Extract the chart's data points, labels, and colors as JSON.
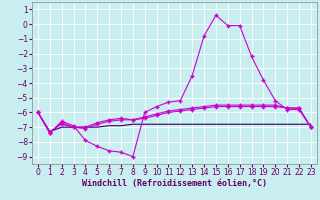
{
  "xlabel": "Windchill (Refroidissement éolien,°C)",
  "background_color": "#c8eef0",
  "grid_color": "#b0dde0",
  "line_color1": "#cc00cc",
  "line_color2": "#cc00cc",
  "line_color3": "#cc00cc",
  "line_color_flat": "#330066",
  "x_values": [
    0,
    1,
    2,
    3,
    4,
    5,
    6,
    7,
    8,
    9,
    10,
    11,
    12,
    13,
    14,
    15,
    16,
    17,
    18,
    19,
    20,
    21,
    22,
    23
  ],
  "line1": [
    -6.0,
    -7.4,
    -6.6,
    -6.9,
    -7.9,
    -8.3,
    -8.6,
    -8.7,
    -9.0,
    -6.0,
    -5.6,
    -5.3,
    -5.2,
    -3.5,
    -0.8,
    0.6,
    -0.1,
    -0.1,
    -2.2,
    -3.8,
    -5.2,
    -5.8,
    -5.8,
    -7.0
  ],
  "line2": [
    -6.0,
    -7.4,
    -6.7,
    -7.0,
    -7.0,
    -6.7,
    -6.5,
    -6.4,
    -6.5,
    -6.3,
    -6.1,
    -5.9,
    -5.8,
    -5.7,
    -5.6,
    -5.5,
    -5.5,
    -5.5,
    -5.5,
    -5.5,
    -5.5,
    -5.7,
    -5.7,
    -7.0
  ],
  "line3": [
    -6.0,
    -7.3,
    -6.8,
    -7.0,
    -7.1,
    -6.8,
    -6.6,
    -6.5,
    -6.5,
    -6.4,
    -6.2,
    -6.0,
    -5.9,
    -5.8,
    -5.7,
    -5.6,
    -5.6,
    -5.6,
    -5.6,
    -5.6,
    -5.6,
    -5.7,
    -5.7,
    -7.0
  ],
  "line_flat": [
    -6.0,
    -7.3,
    -7.0,
    -7.0,
    -7.0,
    -7.0,
    -6.9,
    -6.9,
    -6.8,
    -6.8,
    -6.8,
    -6.8,
    -6.8,
    -6.8,
    -6.8,
    -6.8,
    -6.8,
    -6.8,
    -6.8,
    -6.8,
    -6.8,
    -6.8,
    -6.8,
    -6.8
  ],
  "ylim": [
    -9.5,
    1.5
  ],
  "xlim": [
    -0.5,
    23.5
  ],
  "yticks": [
    1,
    0,
    -1,
    -2,
    -3,
    -4,
    -5,
    -6,
    -7,
    -8,
    -9
  ],
  "xticks": [
    0,
    1,
    2,
    3,
    4,
    5,
    6,
    7,
    8,
    9,
    10,
    11,
    12,
    13,
    14,
    15,
    16,
    17,
    18,
    19,
    20,
    21,
    22,
    23
  ],
  "marker": "+",
  "marker_size": 3,
  "line_width": 0.8,
  "tick_fontsize": 5.5,
  "label_fontsize": 6.0,
  "tick_color": "#660066",
  "label_color": "#660066"
}
